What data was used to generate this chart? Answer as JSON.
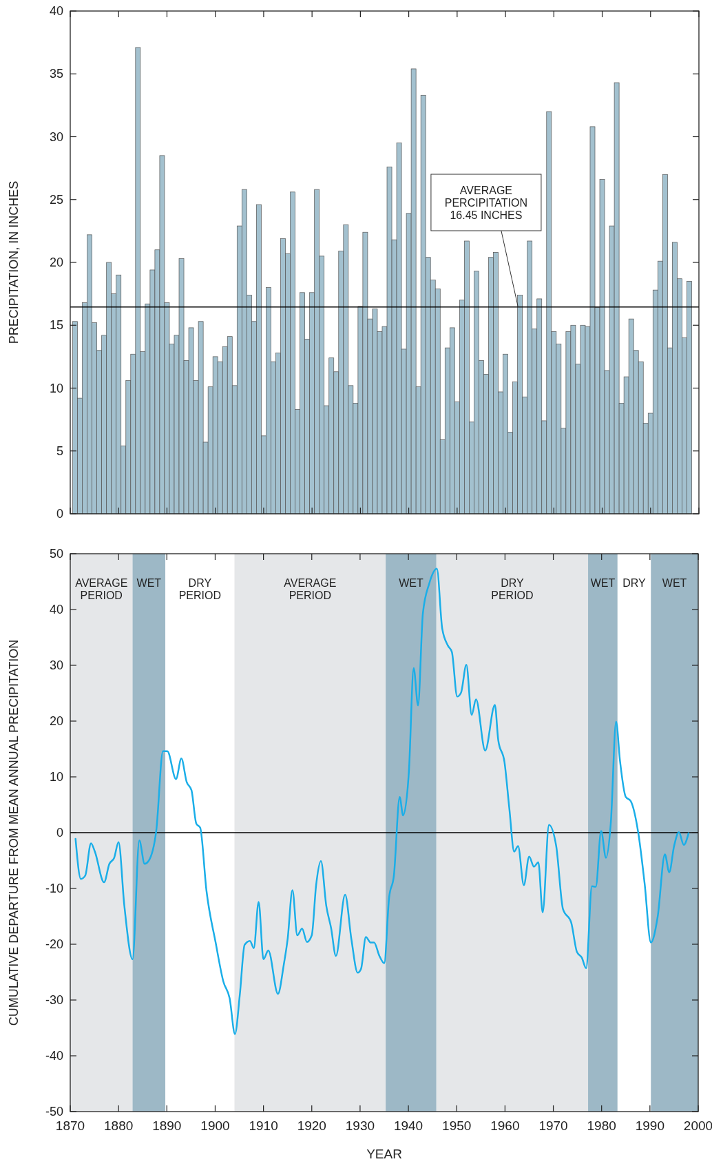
{
  "chart_data": [
    {
      "type": "bar",
      "ylabel": "PRECIPITATION, IN INCHES",
      "color": "#a3c1cf",
      "xlim": [
        1870,
        2000
      ],
      "xticks": [
        1870,
        1880,
        1890,
        1900,
        1910,
        1920,
        1930,
        1940,
        1950,
        1960,
        1970,
        1980,
        1990,
        2000
      ],
      "ylim": [
        0,
        40
      ],
      "yticks": [
        0,
        5,
        10,
        15,
        20,
        25,
        30,
        35,
        40
      ],
      "tick_labels": "y",
      "x": [
        1871,
        1872,
        1873,
        1874,
        1875,
        1876,
        1877,
        1878,
        1879,
        1880,
        1881,
        1882,
        1883,
        1884,
        1885,
        1886,
        1887,
        1888,
        1889,
        1890,
        1891,
        1892,
        1893,
        1894,
        1895,
        1896,
        1897,
        1898,
        1899,
        1900,
        1901,
        1902,
        1903,
        1904,
        1905,
        1906,
        1907,
        1908,
        1909,
        1910,
        1911,
        1912,
        1913,
        1914,
        1915,
        1916,
        1917,
        1918,
        1919,
        1920,
        1921,
        1922,
        1923,
        1924,
        1925,
        1926,
        1927,
        1928,
        1929,
        1930,
        1931,
        1932,
        1933,
        1934,
        1935,
        1936,
        1937,
        1938,
        1939,
        1940,
        1941,
        1942,
        1943,
        1944,
        1945,
        1946,
        1947,
        1948,
        1949,
        1950,
        1951,
        1952,
        1953,
        1954,
        1955,
        1956,
        1957,
        1958,
        1959,
        1960,
        1961,
        1962,
        1963,
        1964,
        1965,
        1966,
        1967,
        1968,
        1969,
        1970,
        1971,
        1972,
        1973,
        1974,
        1975,
        1976,
        1977,
        1978,
        1979,
        1980,
        1981,
        1982,
        1983,
        1984,
        1985,
        1986,
        1987,
        1988,
        1989,
        1990,
        1991,
        1992,
        1993,
        1994,
        1995,
        1996,
        1997,
        1998
      ],
      "values": [
        15.3,
        9.2,
        16.8,
        22.2,
        15.2,
        13.0,
        14.2,
        20.0,
        17.5,
        19.0,
        5.4,
        10.6,
        12.7,
        37.1,
        12.9,
        16.7,
        19.4,
        21.0,
        28.5,
        16.8,
        13.5,
        14.2,
        20.3,
        12.2,
        14.8,
        10.6,
        15.3,
        5.7,
        10.1,
        12.5,
        12.1,
        13.3,
        14.1,
        10.2,
        22.9,
        25.8,
        17.4,
        15.3,
        24.6,
        6.2,
        18.0,
        12.1,
        12.8,
        21.9,
        20.7,
        25.6,
        8.3,
        17.6,
        13.9,
        17.6,
        25.8,
        20.5,
        8.6,
        12.4,
        11.3,
        20.9,
        23.0,
        10.2,
        8.8,
        16.5,
        22.4,
        15.5,
        16.3,
        14.5,
        14.9,
        27.6,
        21.8,
        29.5,
        13.1,
        23.9,
        35.4,
        10.1,
        33.3,
        20.4,
        18.6,
        17.9,
        5.9,
        13.2,
        14.8,
        8.9,
        17.0,
        21.7,
        7.3,
        19.3,
        12.2,
        11.1,
        20.4,
        20.8,
        9.7,
        12.7,
        6.5,
        10.5,
        17.4,
        9.3,
        21.7,
        14.7,
        17.1,
        7.4,
        32.0,
        14.5,
        13.5,
        6.8,
        14.5,
        15.0,
        11.9,
        15.0,
        14.9,
        30.8,
        16.4,
        26.6,
        11.4,
        22.9,
        34.3,
        8.8,
        10.9,
        15.5,
        13.0,
        12.1,
        7.2,
        8.0,
        17.8,
        20.1,
        27.0,
        13.2,
        21.6,
        18.7,
        14.0,
        18.5
      ],
      "ref_lines": [
        {
          "axis": "y",
          "value": 16.45,
          "label": "AVERAGE\nPERCIPITATION\n16.45 INCHES",
          "color": "#000000"
        }
      ]
    },
    {
      "type": "line",
      "xlabel": "YEAR",
      "ylabel": "CUMULATIVE DEPARTURE FROM MEAN ANNUAL PRECIPITATION",
      "color": "#1aaee8",
      "xlim": [
        1870,
        2000
      ],
      "xticks": [
        1870,
        1880,
        1890,
        1900,
        1910,
        1920,
        1930,
        1940,
        1950,
        1960,
        1970,
        1980,
        1990,
        2000
      ],
      "ylim": [
        -50,
        50
      ],
      "yticks": [
        -50,
        -40,
        -30,
        -20,
        -10,
        0,
        10,
        20,
        30,
        40,
        50
      ],
      "x": [
        1871.1,
        1872.2,
        1873.1,
        1874.3,
        1875.1,
        1877.0,
        1878.1,
        1879.1,
        1880.0,
        1881.2,
        1882.9,
        1884.3,
        1885.4,
        1886.2,
        1887.8,
        1889.2,
        1890.1,
        1891.9,
        1893.0,
        1894.1,
        1895.1,
        1896.1,
        1896.9,
        1898.2,
        1900.1,
        1901.7,
        1903.0,
        1904.1,
        1905.1,
        1906.1,
        1907.2,
        1908.0,
        1909.0,
        1910.0,
        1911.0,
        1913.0,
        1914.2,
        1915.0,
        1916.0,
        1917.0,
        1918.0,
        1919.0,
        1920.0,
        1920.9,
        1921.9,
        1923.0,
        1924.0,
        1925.0,
        1926.9,
        1928.2,
        1929.5,
        1930.2,
        1931.2,
        1932.2,
        1932.9,
        1934.0,
        1935.0,
        1936.0,
        1937.0,
        1938.2,
        1938.9,
        1940.1,
        1941.1,
        1942.0,
        1943.0,
        1944.3,
        1945.9,
        1947.0,
        1948.2,
        1949.0,
        1950.1,
        1950.9,
        1952.0,
        1953.1,
        1954.0,
        1955.9,
        1957.9,
        1958.6,
        1959.9,
        1960.9,
        1961.9,
        1962.7,
        1963.9,
        1965.0,
        1966.0,
        1966.9,
        1967.8,
        1969.1,
        1970.6,
        1972.0,
        1973.7,
        1974.9,
        1975.9,
        1976.8,
        1978.0,
        1978.8,
        1979.9,
        1980.9,
        1981.9,
        1983.0,
        1983.8,
        1985.0,
        1986.0,
        1987.6,
        1988.9,
        1990.2,
        1991.6,
        1993.1,
        1994.0,
        1995.0,
        1996.0,
        1997.0,
        1998.0
      ],
      "values": [
        -1.1,
        -8.3,
        -7.7,
        -1.9,
        -3.4,
        -8.9,
        -5.6,
        -4.5,
        -1.7,
        -13.1,
        -22.7,
        -1.4,
        -5.6,
        -5.1,
        0.3,
        14.6,
        14.6,
        9.6,
        13.3,
        9.1,
        7.6,
        1.6,
        0.9,
        -10.4,
        -19.7,
        -26.7,
        -29.7,
        -36.1,
        -29.1,
        -20.1,
        -19.4,
        -20.7,
        -12.4,
        -22.7,
        -21.1,
        -28.9,
        -23.7,
        -19.1,
        -10.3,
        -18.4,
        -17.2,
        -19.6,
        -18.4,
        -9.4,
        -5.1,
        -13.1,
        -17.1,
        -22.1,
        -11.1,
        -19.1,
        -25.1,
        -24.4,
        -18.7,
        -19.7,
        -19.7,
        -22.1,
        -23.4,
        -11.7,
        -7.7,
        6.4,
        3.1,
        10.9,
        29.5,
        22.8,
        39.3,
        44.6,
        47.3,
        36.6,
        33.5,
        32.4,
        24.4,
        25.1,
        30.1,
        21.1,
        23.9,
        14.7,
        22.9,
        16.6,
        12.6,
        4.3,
        -3.4,
        -2.4,
        -9.4,
        -4.3,
        -6.1,
        -5.3,
        -14.3,
        1.4,
        -2.4,
        -13.7,
        -16.1,
        -21.4,
        -22.4,
        -24.3,
        -9.6,
        -9.7,
        0.3,
        -4.5,
        1.7,
        19.9,
        12.9,
        6.4,
        5.7,
        -0.1,
        -9.1,
        -19.7,
        -15.1,
        -3.9,
        -7.1,
        -2.4,
        0.1,
        -2.2,
        -0.1
      ],
      "ref_lines": [
        {
          "axis": "y",
          "value": 0,
          "color": "#000000"
        }
      ],
      "bands": [
        {
          "axis": "x",
          "from": 1870,
          "to": 1882.9,
          "label": "AVERAGE\nPERIOD",
          "color": "#e5e7e9"
        },
        {
          "axis": "x",
          "from": 1882.9,
          "to": 1889.7,
          "label": "WET",
          "color": "#9db8c6"
        },
        {
          "axis": "x",
          "from": 1889.7,
          "to": 1904.0,
          "label": "DRY\nPERIOD",
          "color": "#ffffff"
        },
        {
          "axis": "x",
          "from": 1904.0,
          "to": 1935.3,
          "label": "AVERAGE\nPERIOD",
          "color": "#e5e7e9"
        },
        {
          "axis": "x",
          "from": 1935.3,
          "to": 1945.8,
          "label": "WET",
          "color": "#9db8c6"
        },
        {
          "axis": "x",
          "from": 1945.8,
          "to": 1977.2,
          "label": "DRY\nPERIOD",
          "color": "#e5e7e9"
        },
        {
          "axis": "x",
          "from": 1977.2,
          "to": 1983.3,
          "label": "WET",
          "color": "#9db8c6"
        },
        {
          "axis": "x",
          "from": 1983.3,
          "to": 1990.2,
          "label": "DRY",
          "color": "#ffffff"
        },
        {
          "axis": "x",
          "from": 1990.2,
          "to": 2000,
          "label": "WET",
          "color": "#9db8c6"
        }
      ]
    }
  ]
}
